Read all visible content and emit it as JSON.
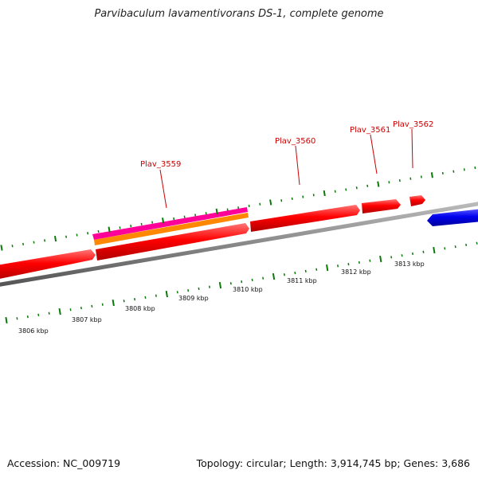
{
  "title": "Parvibaculum lavamentivorans DS-1, complete genome",
  "footer": {
    "accession": "Accession: NC_009719",
    "summary": "Topology: circular; Length: 3,914,745 bp; Genes: 3,686"
  },
  "colors": {
    "forward_gene": "#ff0000",
    "reverse_gene": "#0000ee",
    "cds_feature": "#ff6a00",
    "rna_feature": "#ff0099",
    "backbone": "#888888",
    "tick": "#0a7a0a",
    "label": "#cc0000"
  },
  "scale_labels": [
    "3806 kbp",
    "3807 kbp",
    "3808 kbp",
    "3809 kbp",
    "3810 kbp",
    "3811 kbp",
    "3812 kbp",
    "3813 kbp"
  ],
  "gene_labels": [
    "Plav_3559",
    "Plav_3560",
    "Plav_3561",
    "Plav_3562"
  ]
}
